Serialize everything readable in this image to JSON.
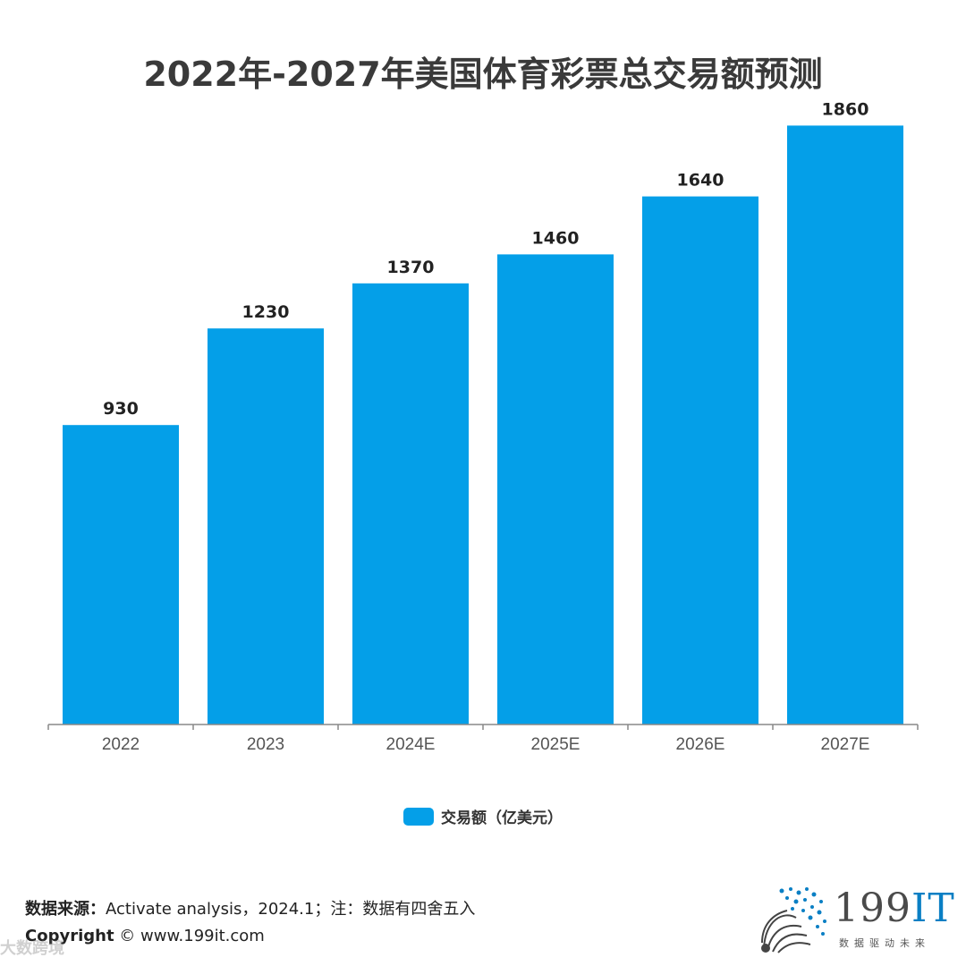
{
  "chart_data": {
    "type": "bar",
    "title": "2022年-2027年美国体育彩票总交易额预测",
    "categories": [
      "2022",
      "2023",
      "2024E",
      "2025E",
      "2026E",
      "2027E"
    ],
    "series": [
      {
        "name": "交易额（亿美元）",
        "values": [
          930,
          1230,
          1370,
          1460,
          1640,
          1860
        ],
        "color": "#049fe8"
      }
    ],
    "ylim": [
      0,
      2000
    ],
    "xlabel": "",
    "ylabel": "",
    "grid": false,
    "legend": "bottom-center"
  },
  "footer": {
    "source_label": "数据来源：",
    "source_text": "Activate analysis，2024.1；注：数据有四舍五入",
    "copyright_label": "Copyright",
    "copyright_text": "© www.199it.com",
    "watermark": "大数跨境"
  },
  "logo": {
    "name_prefix": "199",
    "name_suffix": "IT",
    "tagline": "数据驱动未来"
  }
}
